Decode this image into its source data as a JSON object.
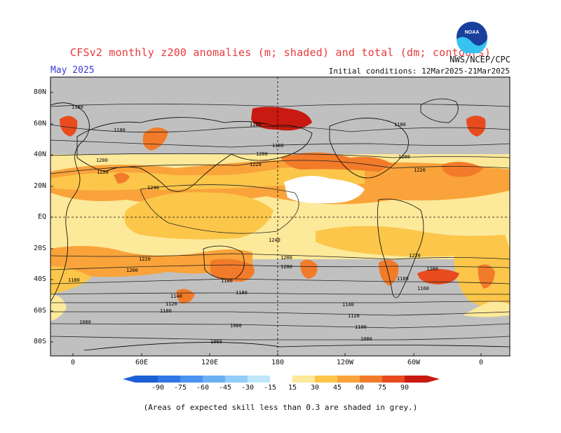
{
  "header": {
    "title": "CFSv2 monthly z200 anomalies (m; shaded) and total (dm; contours)",
    "month": "May 2025",
    "initial_conditions": "Initial conditions: 12Mar2025-21Mar2025",
    "agency": "NWS/NCEP/CPC",
    "logo_text": "NOAA"
  },
  "axes": {
    "lat_labels": [
      "80N",
      "60N",
      "40N",
      "20N",
      "EQ",
      "20S",
      "40S",
      "60S",
      "80S"
    ],
    "lon_labels": [
      "0",
      "60E",
      "120E",
      "180",
      "120W",
      "60W",
      "0"
    ]
  },
  "contour_labels": [
    {
      "text": "1180"
    },
    {
      "text": "1180"
    },
    {
      "text": "1180"
    },
    {
      "text": "1180"
    },
    {
      "text": "1180"
    },
    {
      "text": "1200"
    },
    {
      "text": "1200"
    },
    {
      "text": "1200"
    },
    {
      "text": "1220"
    },
    {
      "text": "1220"
    },
    {
      "text": "1220"
    },
    {
      "text": "1240"
    },
    {
      "text": "1240"
    },
    {
      "text": "1220"
    },
    {
      "text": "1220"
    },
    {
      "text": "1200"
    },
    {
      "text": "1200"
    },
    {
      "text": "1200"
    },
    {
      "text": "1200"
    },
    {
      "text": "1180"
    },
    {
      "text": "1180"
    },
    {
      "text": "1180"
    },
    {
      "text": "1180"
    },
    {
      "text": "1160"
    },
    {
      "text": "1140"
    },
    {
      "text": "1140"
    },
    {
      "text": "1120"
    },
    {
      "text": "1120"
    },
    {
      "text": "1100"
    },
    {
      "text": "1100"
    },
    {
      "text": "1080"
    },
    {
      "text": "1080"
    },
    {
      "text": "1060"
    },
    {
      "text": "1080"
    }
  ],
  "colorbar": {
    "labels": [
      "-90",
      "-75",
      "-60",
      "-45",
      "-30",
      "-15",
      "15",
      "30",
      "45",
      "60",
      "75",
      "90"
    ],
    "colors": {
      "neg": [
        "#1d5fd6",
        "#2f78e6",
        "#4b93ee",
        "#6cb0f4",
        "#92ccf8",
        "#bfe6fb"
      ],
      "neutral": "#ffffff",
      "pos": [
        "#fde99a",
        "#fbc64a",
        "#f9a33a",
        "#f27b2a",
        "#e84b1e",
        "#c81a10"
      ]
    }
  },
  "colors": {
    "grey_mask": "#c0c0c0",
    "title_red": "#e8393a",
    "month_blue": "#3b3bd6"
  },
  "footnote": "(Areas of expected skill less than 0.3 are shaded in grey.)"
}
